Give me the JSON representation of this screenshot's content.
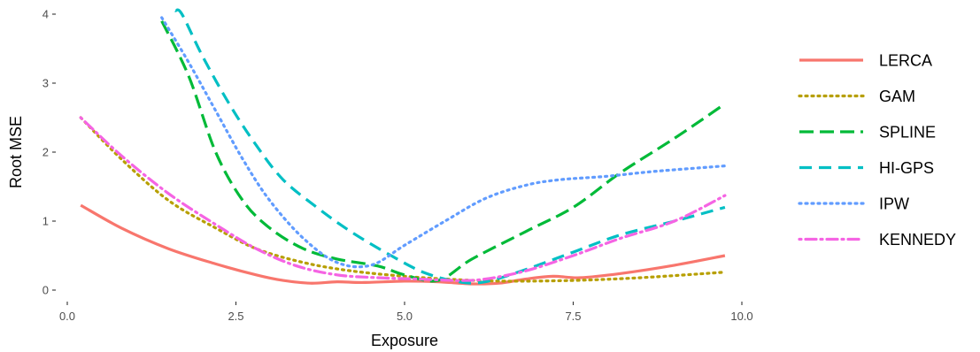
{
  "chart_data": {
    "type": "line",
    "xlabel": "Exposure",
    "ylabel": "Root MSE",
    "xlim": [
      0,
      10
    ],
    "ylim": [
      0,
      4
    ],
    "x_ticks": [
      0,
      2.5,
      5,
      7.5,
      10
    ],
    "x_tick_labels": [
      "0.0",
      "2.5",
      "5.0",
      "7.5",
      "10.0"
    ],
    "y_ticks": [
      0,
      1,
      2,
      3,
      4
    ],
    "y_tick_labels": [
      "0",
      "1",
      "2",
      "3",
      "4"
    ],
    "grid": false,
    "legend_position": "right",
    "series": [
      {
        "name": "LERCA",
        "color": "#F8766D",
        "dash": "solid",
        "x": [
          0.2,
          0.8,
          1.5,
          2.2,
          2.8,
          3.2,
          3.6,
          4.0,
          4.4,
          5.0,
          5.5,
          6.0,
          6.4,
          6.8,
          7.2,
          7.6,
          8.2,
          9.0,
          9.75
        ],
        "y": [
          1.23,
          0.9,
          0.6,
          0.38,
          0.22,
          0.14,
          0.1,
          0.12,
          0.11,
          0.13,
          0.12,
          0.09,
          0.1,
          0.16,
          0.2,
          0.18,
          0.24,
          0.36,
          0.5
        ]
      },
      {
        "name": "GAM",
        "color": "#B79F00",
        "dash": "dotted",
        "x": [
          0.2,
          0.8,
          1.5,
          2.2,
          2.8,
          3.5,
          4.2,
          5.0,
          5.8,
          6.5,
          7.5,
          8.5,
          9.75
        ],
        "y": [
          2.5,
          1.9,
          1.3,
          0.9,
          0.6,
          0.4,
          0.28,
          0.2,
          0.15,
          0.13,
          0.14,
          0.18,
          0.26
        ]
      },
      {
        "name": "SPLINE",
        "color": "#00BA38",
        "dash": "longdash",
        "x": [
          1.4,
          1.8,
          2.2,
          2.6,
          3.0,
          3.5,
          4.0,
          4.6,
          5.0,
          5.5,
          6.0,
          6.8,
          7.5,
          8.2,
          9.0,
          9.75
        ],
        "y": [
          3.9,
          3.1,
          2.0,
          1.3,
          0.9,
          0.6,
          0.45,
          0.35,
          0.22,
          0.14,
          0.45,
          0.85,
          1.2,
          1.7,
          2.2,
          2.7
        ]
      },
      {
        "name": "HI-GPS",
        "color": "#00BFC4",
        "dash": "dashed",
        "x": [
          1.6,
          1.7,
          2.0,
          2.4,
          2.8,
          3.2,
          3.7,
          4.2,
          4.8,
          5.3,
          5.8,
          6.2,
          6.8,
          7.5,
          8.2,
          9.0,
          9.75
        ],
        "y": [
          4.05,
          4.0,
          3.4,
          2.7,
          2.1,
          1.6,
          1.2,
          0.85,
          0.5,
          0.25,
          0.12,
          0.12,
          0.3,
          0.55,
          0.8,
          1.0,
          1.2
        ]
      },
      {
        "name": "IPW",
        "color": "#619CFF",
        "dash": "dotted",
        "x": [
          1.4,
          1.8,
          2.2,
          2.6,
          3.0,
          3.5,
          4.0,
          4.5,
          5.0,
          5.6,
          6.2,
          6.8,
          7.3,
          8.0,
          8.7,
          9.75
        ],
        "y": [
          3.95,
          3.3,
          2.6,
          1.9,
          1.3,
          0.75,
          0.4,
          0.36,
          0.65,
          1.0,
          1.33,
          1.52,
          1.6,
          1.65,
          1.72,
          1.8
        ]
      },
      {
        "name": "KENNEDY",
        "color": "#F564E3",
        "dash": "dotdash",
        "x": [
          0.2,
          0.8,
          1.5,
          2.2,
          2.8,
          3.4,
          4.0,
          4.6,
          5.2,
          5.8,
          6.2,
          6.8,
          7.5,
          8.2,
          9.0,
          9.75
        ],
        "y": [
          2.5,
          1.95,
          1.4,
          0.95,
          0.6,
          0.35,
          0.22,
          0.18,
          0.16,
          0.14,
          0.16,
          0.28,
          0.5,
          0.75,
          1.0,
          1.37
        ]
      }
    ]
  }
}
